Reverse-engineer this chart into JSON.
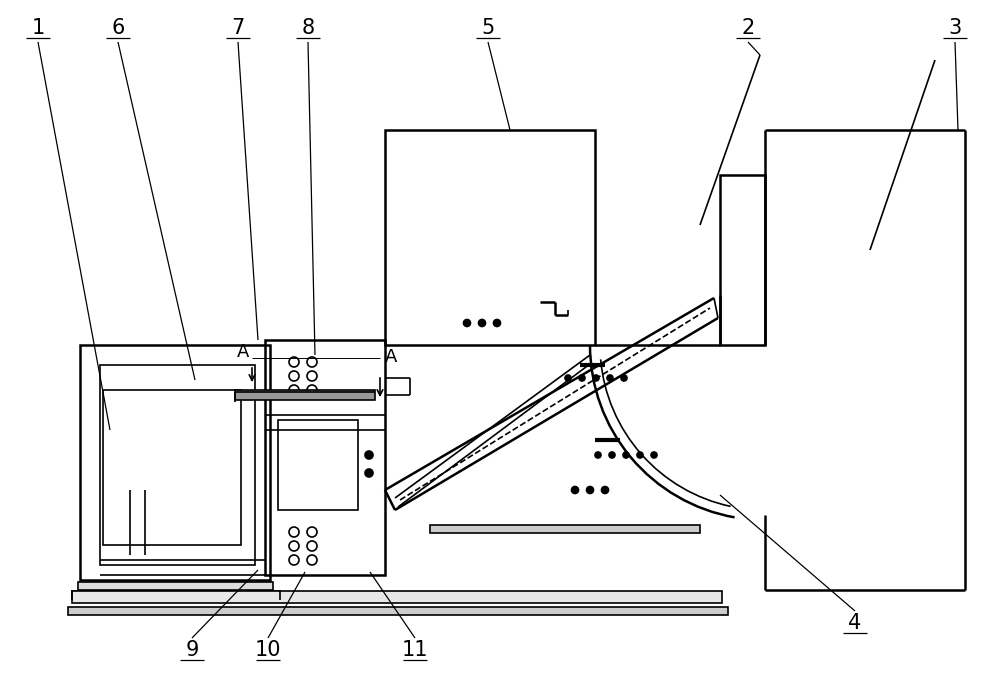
{
  "bg": "#ffffff",
  "lc": "#000000",
  "lw": 1.2,
  "lw2": 1.8,
  "fs": 15,
  "figsize": [
    10.0,
    6.88
  ],
  "dpi": 100
}
